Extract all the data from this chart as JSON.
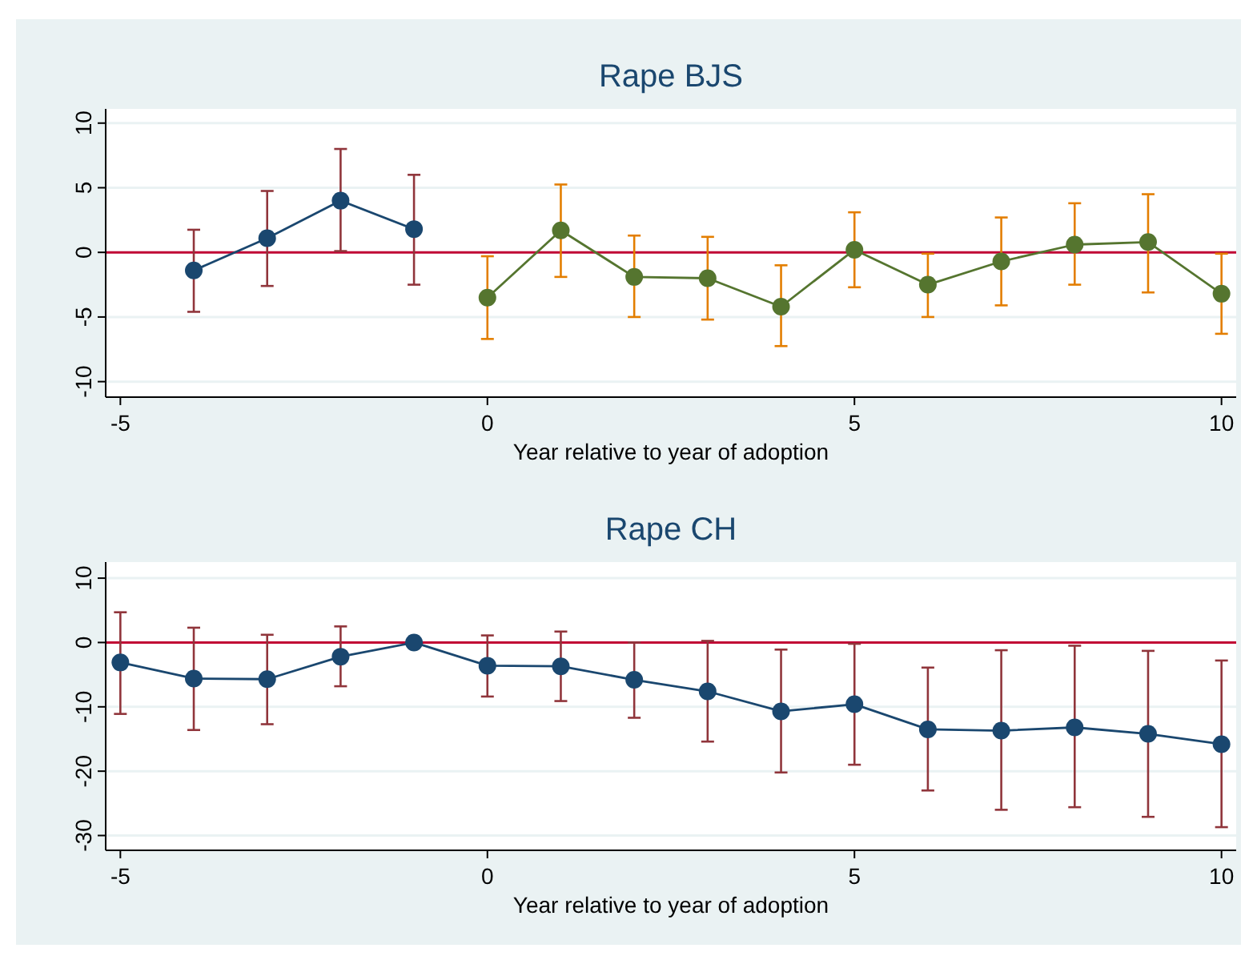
{
  "chart_data": [
    {
      "type": "line",
      "title": "Rape BJS",
      "xlabel": "Year relative to year of adoption",
      "xlim": [
        -5.2,
        10.2
      ],
      "xticks": [
        -5,
        0,
        5,
        10
      ],
      "ylim": [
        -11.2,
        11.1
      ],
      "yticks": [
        -10,
        -5,
        0,
        5,
        10
      ],
      "grid": "y",
      "marker": "circle",
      "ref_lines": [
        {
          "axis": "y",
          "value": 0,
          "color": "#c10534"
        }
      ],
      "series": [
        {
          "color": "#1a476f",
          "x": [
            -4,
            -3,
            -2,
            -1
          ],
          "values": [
            -1.4,
            1.1,
            4.0,
            1.8
          ],
          "errors": [
            [
              -4.6,
              1.75
            ],
            [
              -2.6,
              4.75
            ],
            [
              0.1,
              8.0
            ],
            [
              -2.5,
              6.0
            ]
          ]
        },
        {
          "color": "#55752f",
          "x": [
            0,
            1,
            2,
            3,
            4,
            5,
            6,
            7,
            8,
            9,
            10
          ],
          "values": [
            -3.5,
            1.7,
            -1.9,
            -2.0,
            -4.2,
            0.2,
            -2.5,
            -0.7,
            0.6,
            0.8,
            -3.2
          ],
          "errors": [
            [
              -6.7,
              -0.3
            ],
            [
              -1.9,
              5.25
            ],
            [
              -5.0,
              1.3
            ],
            [
              -5.2,
              1.2
            ],
            [
              -7.25,
              -1.0
            ],
            [
              -2.7,
              3.1
            ],
            [
              -5.0,
              -0.1
            ],
            [
              -4.1,
              2.7
            ],
            [
              -2.5,
              3.8
            ],
            [
              -3.1,
              4.5
            ],
            [
              -6.3,
              -0.1
            ]
          ]
        }
      ]
    },
    {
      "type": "line",
      "title": "Rape CH",
      "xlabel": "Year relative to year of adoption",
      "xlim": [
        -5.2,
        10.2
      ],
      "xticks": [
        -5,
        0,
        5,
        10
      ],
      "ylim": [
        -32.3,
        12.5
      ],
      "yticks": [
        -30,
        -20,
        -10,
        0,
        10
      ],
      "grid": "y",
      "marker": "circle",
      "ref_lines": [
        {
          "axis": "y",
          "value": 0,
          "color": "#c10534"
        }
      ],
      "series": [
        {
          "color": "#1a476f",
          "x": [
            -5,
            -4,
            -3,
            -2,
            -1,
            0,
            1,
            2,
            3,
            4,
            5,
            6,
            7,
            8,
            9,
            10
          ],
          "values": [
            -3.1,
            -5.6,
            -5.7,
            -2.2,
            0,
            -3.6,
            -3.7,
            -5.8,
            -7.6,
            -10.7,
            -9.6,
            -13.5,
            -13.7,
            -13.2,
            -14.2,
            -15.8
          ],
          "errors": [
            [
              -11.1,
              4.7
            ],
            [
              -13.6,
              2.3
            ],
            [
              -12.7,
              1.2
            ],
            [
              -6.8,
              2.5
            ],
            null,
            [
              -8.4,
              1.1
            ],
            [
              -9.1,
              1.7
            ],
            [
              -11.7,
              0
            ],
            [
              -15.4,
              0.25
            ],
            [
              -20.2,
              -1.1
            ],
            [
              -19.0,
              -0.2
            ],
            [
              -23.0,
              -3.9
            ],
            [
              -26.0,
              -1.2
            ],
            [
              -25.6,
              -0.5
            ],
            [
              -27.1,
              -1.3
            ],
            [
              -28.7,
              -2.8
            ]
          ]
        }
      ]
    }
  ]
}
